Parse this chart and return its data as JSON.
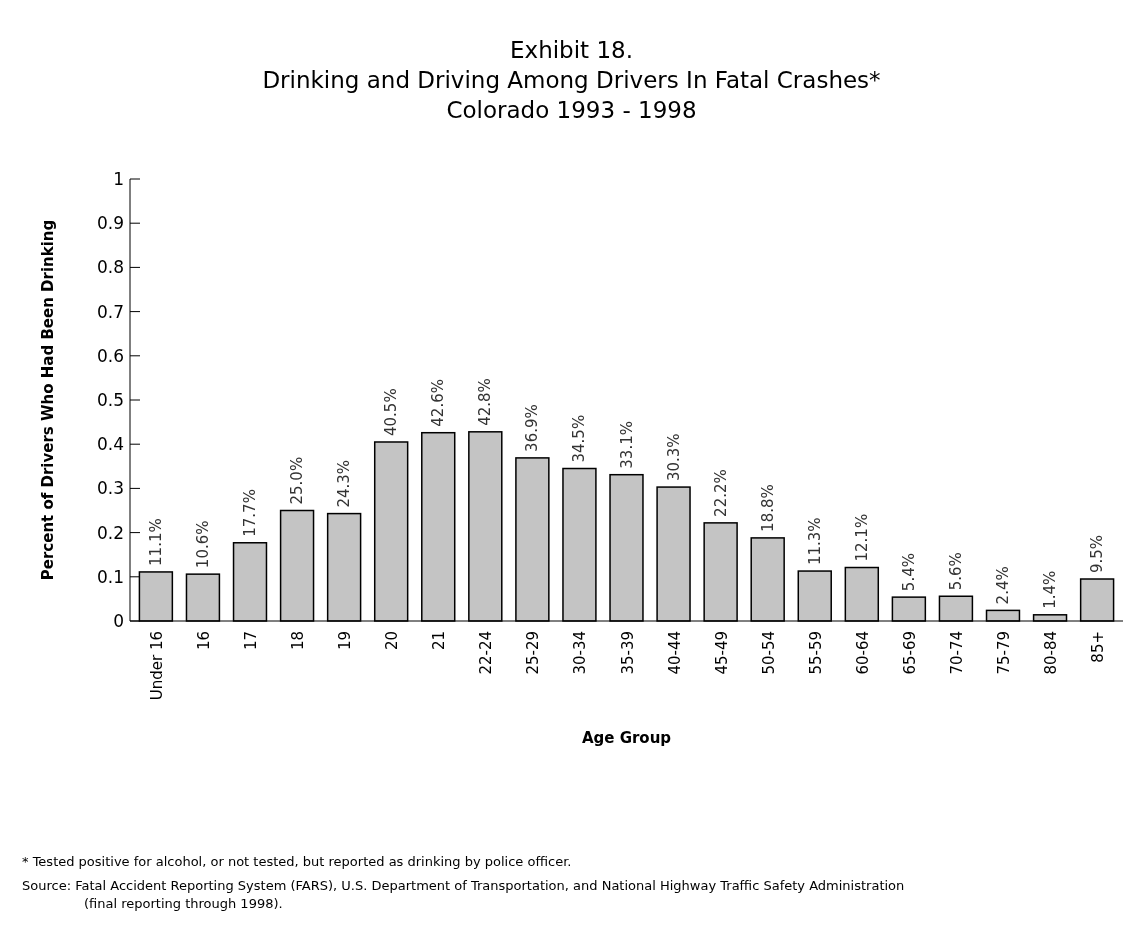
{
  "chart_data": {
    "type": "bar",
    "title": "Exhibit 18.\nDrinking and Driving Among Drivers In Fatal Crashes*\nColorado 1993 - 1998",
    "xlabel": "Age Group",
    "ylabel": "Percent of Drivers Who Had Been Drinking",
    "categories": [
      "Under 16",
      "16",
      "17",
      "18",
      "19",
      "20",
      "21",
      "22-24",
      "25-29",
      "30-34",
      "35-39",
      "40-44",
      "45-49",
      "50-54",
      "55-59",
      "60-64",
      "65-69",
      "70-74",
      "75-79",
      "80-84",
      "85+"
    ],
    "values": [
      0.111,
      0.106,
      0.177,
      0.25,
      0.243,
      0.405,
      0.426,
      0.428,
      0.369,
      0.345,
      0.331,
      0.303,
      0.222,
      0.188,
      0.113,
      0.121,
      0.054,
      0.056,
      0.024,
      0.014,
      0.095
    ],
    "value_labels": [
      "11.1%",
      "10.6%",
      "17.7%",
      "25.0%",
      "24.3%",
      "40.5%",
      "42.6%",
      "42.8%",
      "36.9%",
      "34.5%",
      "33.1%",
      "30.3%",
      "22.2%",
      "18.8%",
      "11.3%",
      "12.1%",
      "5.4%",
      "5.6%",
      "2.4%",
      "1.4%",
      "9.5%"
    ],
    "color": "#c4c4c4",
    "ylim": [
      0,
      1
    ],
    "yticks": [
      0,
      0.1,
      0.2,
      0.3,
      0.4,
      0.5,
      0.6,
      0.7,
      0.8,
      0.9,
      1
    ],
    "grid": false,
    "annotations": [
      "*     Tested positive for alcohol, or not tested, but reported as drinking by police officer.",
      "Source:  Fatal Accident Reporting System (FARS), U.S. Department of Transportation, and National Highway Traffic Safety Administration (final reporting through 1998)."
    ]
  }
}
